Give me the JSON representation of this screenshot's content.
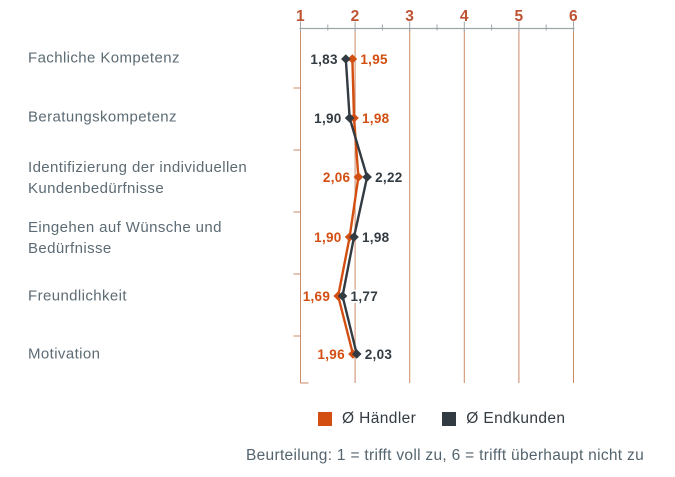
{
  "chart_data": {
    "type": "line",
    "variant": "vertical-profile-comparison",
    "categories": [
      "Fachliche Kompetenz",
      "Beratungskompetenz",
      "Identifizierung der individuellen\nKundenbedürfnisse",
      "Eingehen auf Wünsche und\nBedürfnisse",
      "Freundlichkeit",
      "Motivation"
    ],
    "x_axis": {
      "min": 1,
      "max": 6,
      "ticks": [
        1,
        2,
        3,
        4,
        5,
        6
      ],
      "minor_step": 0.5,
      "position": "top"
    },
    "series": [
      {
        "name": "Ø Händler",
        "color": "#D24E11",
        "values": [
          1.95,
          1.98,
          2.06,
          1.9,
          1.69,
          1.96
        ],
        "labels": [
          "1,95",
          "1,98",
          "2,06",
          "1,90",
          "1,69",
          "1,96"
        ]
      },
      {
        "name": "Ø Endkunden",
        "color": "#333B42",
        "values": [
          1.83,
          1.9,
          2.22,
          1.98,
          1.77,
          2.03
        ],
        "labels": [
          "1,83",
          "1,90",
          "2,22",
          "1,98",
          "1,77",
          "2,03"
        ]
      }
    ],
    "legend_position": "bottom",
    "grid": true,
    "footnote": "Beurteilung: 1 = trifft voll zu, 6 = trifft überhaupt nicht zu",
    "colors": {
      "gridline": "#CB8A68",
      "tick_label": "#BE5334",
      "axis_line": "#9FA5A8",
      "category_label": "#5C6B74"
    }
  }
}
